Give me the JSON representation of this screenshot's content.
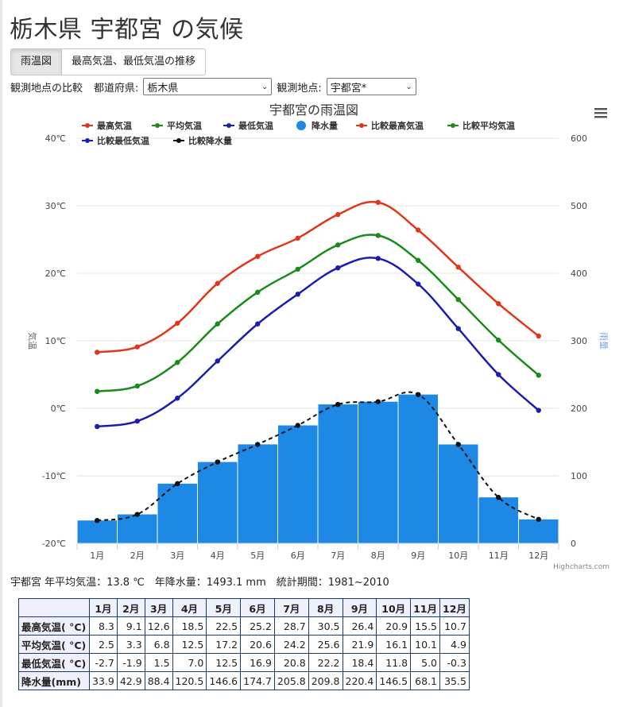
{
  "page": {
    "title": "栃木県 宇都宮 の気候"
  },
  "tabs": [
    {
      "label": "雨温図",
      "active": true
    },
    {
      "label": "最高気温、最低気温の推移",
      "active": false
    }
  ],
  "controls": {
    "compare_label": "観測地点の比較",
    "prefecture_label": "都道府県:",
    "prefecture_value": "栃木県",
    "station_label": "観測地点:",
    "station_value": "宇都宮*"
  },
  "chart_data": {
    "type": "line+bar",
    "title": "宇都宮の雨温図",
    "categories": [
      "1月",
      "2月",
      "3月",
      "4月",
      "5月",
      "6月",
      "7月",
      "8月",
      "9月",
      "10月",
      "11月",
      "12月"
    ],
    "y_left": {
      "label": "気温",
      "min": -20,
      "max": 40,
      "ticks": [
        "-20℃",
        "-10℃",
        "0℃",
        "10℃",
        "20℃",
        "30℃",
        "40℃"
      ]
    },
    "y_right": {
      "label": "雨量",
      "min": 0,
      "max": 600,
      "ticks": [
        "0",
        "100",
        "200",
        "300",
        "400",
        "500",
        "600"
      ]
    },
    "legend": [
      "最高気温",
      "平均気温",
      "最低気温",
      "降水量",
      "比較最高気温",
      "比較平均気温",
      "比較最低気温",
      "比較降水量"
    ],
    "colors": {
      "max_temp": "#e0371c",
      "avg_temp": "#1a8a1a",
      "min_temp": "#1c1cb0",
      "precip": "#1e88e5",
      "compare_precip": "#111111"
    },
    "series": [
      {
        "name": "最高気温",
        "axis": "left",
        "values": [
          8.3,
          9.1,
          12.6,
          18.5,
          22.5,
          25.2,
          28.7,
          30.5,
          26.4,
          20.9,
          15.5,
          10.7
        ]
      },
      {
        "name": "平均気温",
        "axis": "left",
        "values": [
          2.5,
          3.3,
          6.8,
          12.5,
          17.2,
          20.6,
          24.2,
          25.6,
          21.9,
          16.1,
          10.1,
          4.9
        ]
      },
      {
        "name": "最低気温",
        "axis": "left",
        "values": [
          -2.7,
          -1.9,
          1.5,
          7.0,
          12.5,
          16.9,
          20.8,
          22.2,
          18.4,
          11.8,
          5.0,
          -0.3
        ]
      },
      {
        "name": "降水量",
        "axis": "right",
        "values": [
          33.9,
          42.9,
          88.4,
          120.5,
          146.6,
          174.7,
          205.8,
          209.8,
          220.4,
          146.5,
          68.1,
          35.5
        ]
      },
      {
        "name": "比較降水量",
        "axis": "right",
        "values": [
          33.9,
          42.9,
          88.4,
          120.5,
          146.6,
          174.7,
          205.8,
          209.8,
          220.4,
          146.5,
          68.1,
          35.5
        ]
      }
    ],
    "credit": "Highcharts.com",
    "menu_icon": "hamburger-menu-icon"
  },
  "summary": {
    "text": "宇都宮 年平均気温：13.8 ℃　年降水量：1493.1 mm　統計期間：1981~2010"
  },
  "table": {
    "months": [
      "1月",
      "2月",
      "3月",
      "4月",
      "5月",
      "6月",
      "7月",
      "8月",
      "9月",
      "10月",
      "11月",
      "12月"
    ],
    "rows": [
      {
        "label": "最高気温( °C)",
        "values": [
          "8.3",
          "9.1",
          "12.6",
          "18.5",
          "22.5",
          "25.2",
          "28.7",
          "30.5",
          "26.4",
          "20.9",
          "15.5",
          "10.7"
        ]
      },
      {
        "label": "平均気温( °C)",
        "values": [
          "2.5",
          "3.3",
          "6.8",
          "12.5",
          "17.2",
          "20.6",
          "24.2",
          "25.6",
          "21.9",
          "16.1",
          "10.1",
          "4.9"
        ]
      },
      {
        "label": "最低気温( °C)",
        "values": [
          "-2.7",
          "-1.9",
          "1.5",
          "7.0",
          "12.5",
          "16.9",
          "20.8",
          "22.2",
          "18.4",
          "11.8",
          "5.0",
          "-0.3"
        ]
      },
      {
        "label": "降水量(mm)",
        "values": [
          "33.9",
          "42.9",
          "88.4",
          "120.5",
          "146.6",
          "174.7",
          "205.8",
          "209.8",
          "220.4",
          "146.5",
          "68.1",
          "35.5"
        ]
      }
    ]
  }
}
